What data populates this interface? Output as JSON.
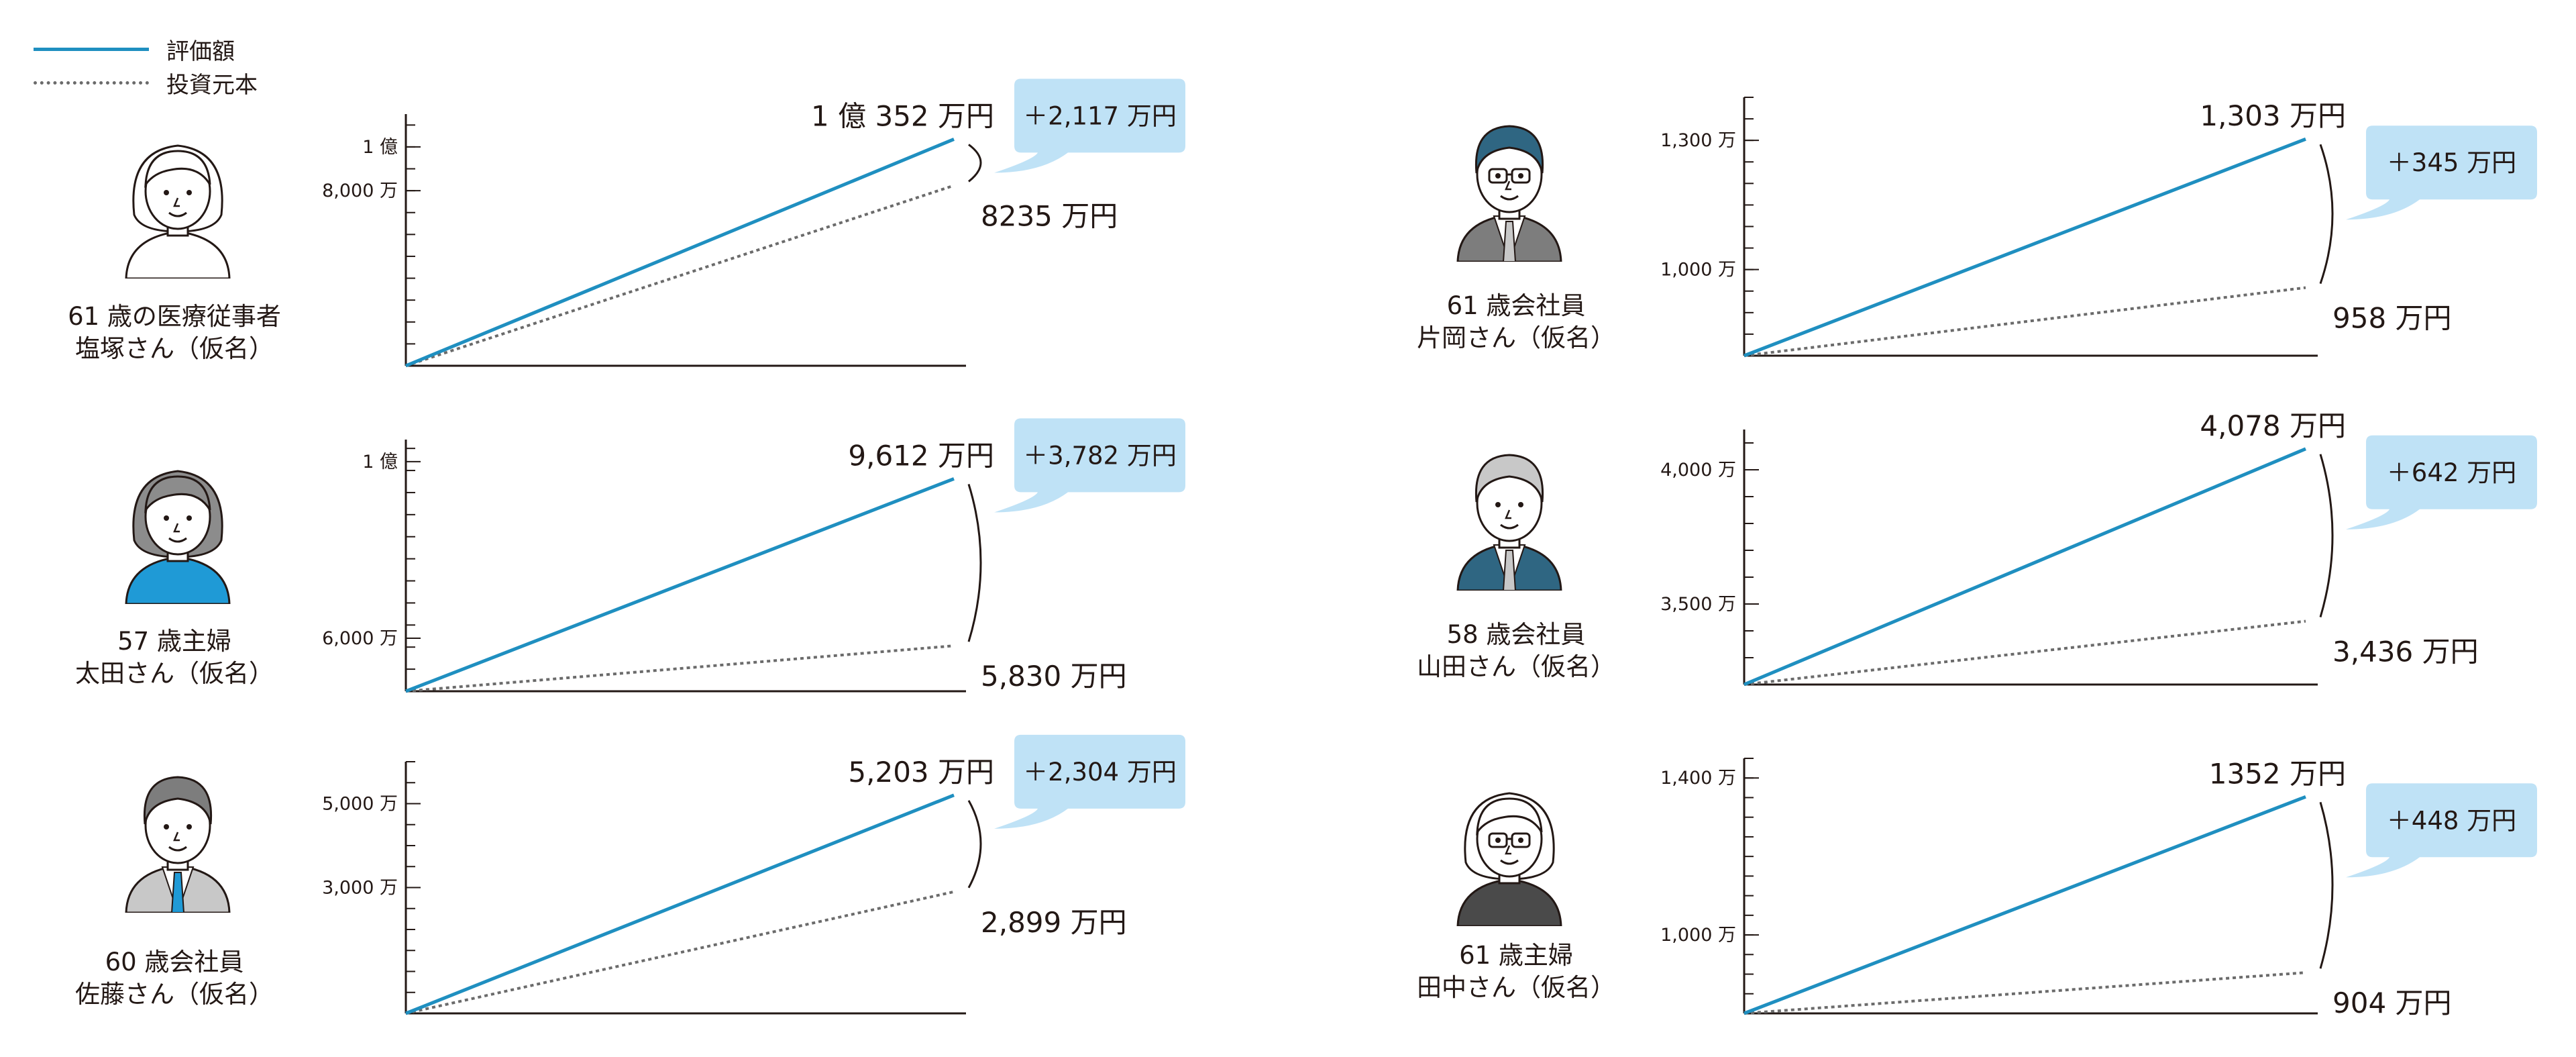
{
  "legend": {
    "value_label": "評価額",
    "principal_label": "投資元本"
  },
  "colors": {
    "value_line": "#1f8fc0",
    "principal_line": "#6b6b6b",
    "bubble": "#bfe2f6",
    "axis": "#231815"
  },
  "persons": [
    {
      "caption_line1": "61 歳の医療従事者",
      "caption_line2": "塩塚さん（仮名）",
      "avatar": "woman-short-hair-icon"
    },
    {
      "caption_line1": "57 歳主婦",
      "caption_line2": "太田さん（仮名）",
      "avatar": "woman-bob-hair-icon"
    },
    {
      "caption_line1": "60 歳会社員",
      "caption_line2": "佐藤さん（仮名）",
      "avatar": "man-suit-icon"
    },
    {
      "caption_line1": "61 歳会社員",
      "caption_line2": "片岡さん（仮名）",
      "avatar": "man-glasses-icon"
    },
    {
      "caption_line1": "58 歳会社員",
      "caption_line2": "山田さん（仮名）",
      "avatar": "older-man-suit-icon"
    },
    {
      "caption_line1": "61 歳主婦",
      "caption_line2": "田中さん（仮名）",
      "avatar": "older-woman-glasses-icon"
    }
  ],
  "chart_data": [
    {
      "type": "line",
      "series": [
        {
          "name": "評価額",
          "values": [
            0,
            10352
          ]
        },
        {
          "name": "投資元本",
          "values": [
            0,
            8235
          ]
        }
      ],
      "x": [
        0,
        1
      ],
      "ylim": [
        0,
        11500
      ],
      "yticks": [
        {
          "value": 10000,
          "label": "1 億"
        },
        {
          "value": 8000,
          "label": "8,000 万"
        }
      ],
      "ytick_step": 1000,
      "end_value_label": "1 億 352 万円",
      "end_principal_label": "8235 万円",
      "gain_label": "＋2,117 万円"
    },
    {
      "type": "line",
      "series": [
        {
          "name": "評価額",
          "values": [
            4800,
            9612
          ]
        },
        {
          "name": "投資元本",
          "values": [
            4800,
            5830
          ]
        }
      ],
      "x": [
        0,
        1
      ],
      "ylim": [
        4800,
        10500
      ],
      "yticks": [
        {
          "value": 10000,
          "label": "1 億"
        },
        {
          "value": 6000,
          "label": "6,000 万"
        }
      ],
      "ytick_step": 500,
      "end_value_label": "9,612 万円",
      "end_principal_label": "5,830 万円",
      "gain_label": "＋3,782 万円"
    },
    {
      "type": "line",
      "series": [
        {
          "name": "評価額",
          "values": [
            0,
            5203
          ]
        },
        {
          "name": "投資元本",
          "values": [
            0,
            2899
          ]
        }
      ],
      "x": [
        0,
        1
      ],
      "ylim": [
        0,
        6000
      ],
      "yticks": [
        {
          "value": 5000,
          "label": "5,000 万"
        },
        {
          "value": 3000,
          "label": "3,000 万"
        }
      ],
      "ytick_step": 500,
      "end_value_label": "5,203 万円",
      "end_principal_label": "2,899 万円",
      "gain_label": "＋2,304 万円"
    },
    {
      "type": "line",
      "series": [
        {
          "name": "評価額",
          "values": [
            800,
            1303
          ]
        },
        {
          "name": "投資元本",
          "values": [
            800,
            958
          ]
        }
      ],
      "x": [
        0,
        1
      ],
      "ylim": [
        800,
        1400
      ],
      "yticks": [
        {
          "value": 1300,
          "label": "1,300 万"
        },
        {
          "value": 1000,
          "label": "1,000 万"
        }
      ],
      "ytick_step": 50,
      "end_value_label": "1,303 万円",
      "end_principal_label": "958 万円",
      "gain_label": "＋345 万円"
    },
    {
      "type": "line",
      "series": [
        {
          "name": "評価額",
          "values": [
            3200,
            4078
          ]
        },
        {
          "name": "投資元本",
          "values": [
            3200,
            3436
          ]
        }
      ],
      "x": [
        0,
        1
      ],
      "ylim": [
        3200,
        4150
      ],
      "yticks": [
        {
          "value": 4000,
          "label": "4,000 万"
        },
        {
          "value": 3500,
          "label": "3,500 万"
        }
      ],
      "ytick_step": 100,
      "end_value_label": "4,078 万円",
      "end_principal_label": "3,436 万円",
      "gain_label": "＋642 万円"
    },
    {
      "type": "line",
      "series": [
        {
          "name": "評価額",
          "values": [
            800,
            1352
          ]
        },
        {
          "name": "投資元本",
          "values": [
            800,
            904
          ]
        }
      ],
      "x": [
        0,
        1
      ],
      "ylim": [
        800,
        1450
      ],
      "yticks": [
        {
          "value": 1400,
          "label": "1,400 万"
        },
        {
          "value": 1000,
          "label": "1,000 万"
        }
      ],
      "ytick_step": 50,
      "end_value_label": "1352 万円",
      "end_principal_label": "904 万円",
      "gain_label": "＋448 万円"
    }
  ]
}
